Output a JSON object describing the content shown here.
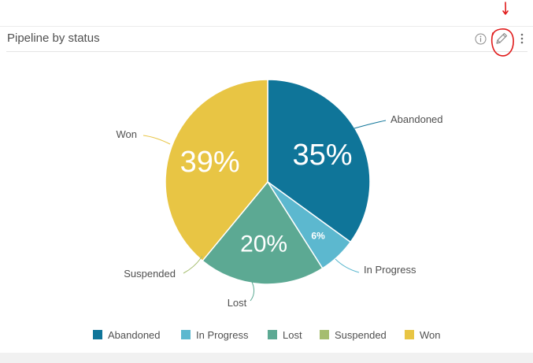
{
  "widget": {
    "title": "Pipeline by status",
    "info_icon": "info-circle-icon",
    "edit_icon": "pencil-icon",
    "more_icon": "vertical-ellipsis-icon"
  },
  "chart_data": {
    "type": "pie",
    "title": "Pipeline by status",
    "legend_position": "bottom",
    "slices": [
      {
        "label": "Abandoned",
        "value": 35,
        "display": "35%",
        "color": "#0f7599"
      },
      {
        "label": "In Progress",
        "value": 6,
        "display": "6%",
        "color": "#5cb8cf"
      },
      {
        "label": "Lost",
        "value": 20,
        "display": "20%",
        "color": "#5ca993"
      },
      {
        "label": "Suspended",
        "value": 0,
        "display": "",
        "color": "#a5bd6f"
      },
      {
        "label": "Won",
        "value": 39,
        "display": "39%",
        "color": "#e8c544"
      }
    ]
  }
}
